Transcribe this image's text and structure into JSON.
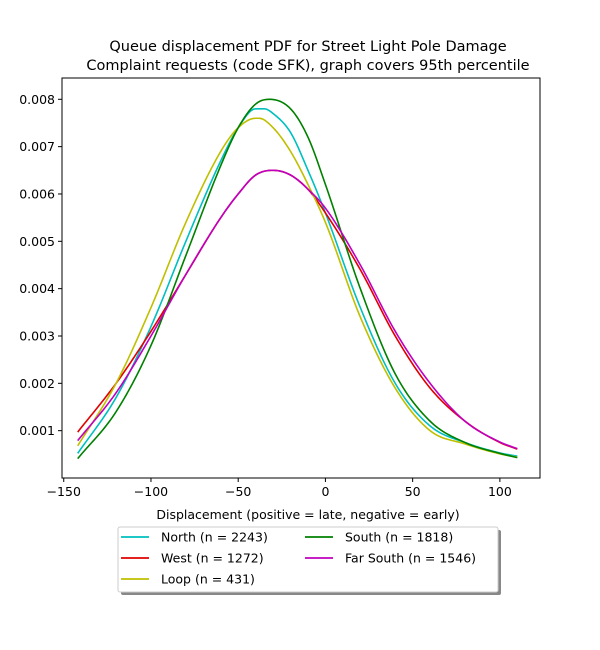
{
  "chart_data": {
    "type": "line",
    "title": "Queue displacement PDF for Street Light Pole Damage\nComplaint  requests (code SFK), graph covers 95th percentile",
    "xlabel": "Displacement (positive = late, negative = early)",
    "ylabel": "",
    "xlim": [
      -151,
      123
    ],
    "ylim": [
      0.0,
      0.00845
    ],
    "x_ticks": [
      -150,
      -100,
      -50,
      0,
      50,
      100
    ],
    "x_tick_labels": [
      "−150",
      "−100",
      "−50",
      "0",
      "50",
      "100"
    ],
    "y_ticks": [
      0.001,
      0.002,
      0.003,
      0.004,
      0.005,
      0.006,
      0.007,
      0.008
    ],
    "y_tick_labels": [
      "0.001",
      "0.002",
      "0.003",
      "0.004",
      "0.005",
      "0.006",
      "0.007",
      "0.008"
    ],
    "grid": false,
    "legend_placement": "below the plot, two columns",
    "series": [
      {
        "name": "North (n = 2243)",
        "color": "#00bfbf",
        "x": [
          -142,
          -120,
          -100,
          -80,
          -60,
          -50,
          -40,
          -35,
          -30,
          -20,
          -10,
          0,
          20,
          40,
          60,
          80,
          100,
          110
        ],
        "y": [
          0.00052,
          0.0017,
          0.0032,
          0.005,
          0.0067,
          0.0074,
          0.0078,
          0.0078,
          0.0077,
          0.0073,
          0.0065,
          0.0056,
          0.0036,
          0.002,
          0.0011,
          0.00075,
          0.00053,
          0.00046
        ]
      },
      {
        "name": "West (n = 1272)",
        "color": "#e00000",
        "x": [
          -142,
          -120,
          -100,
          -80,
          -60,
          -50,
          -40,
          -30,
          -20,
          -10,
          0,
          20,
          40,
          60,
          80,
          100,
          110
        ],
        "y": [
          0.00097,
          0.002,
          0.0031,
          0.0043,
          0.0055,
          0.006,
          0.0064,
          0.0065,
          0.0064,
          0.0061,
          0.0056,
          0.0044,
          0.003,
          0.0019,
          0.0012,
          0.00075,
          0.00061
        ]
      },
      {
        "name": "Loop (n = 431)",
        "color": "#bfbf00",
        "x": [
          -142,
          -120,
          -100,
          -80,
          -60,
          -50,
          -40,
          -38,
          -30,
          -20,
          -10,
          0,
          20,
          40,
          60,
          80,
          100,
          110
        ],
        "y": [
          0.00068,
          0.002,
          0.0036,
          0.0054,
          0.0069,
          0.0074,
          0.0076,
          0.0076,
          0.0074,
          0.0069,
          0.0062,
          0.0054,
          0.0034,
          0.0019,
          0.001,
          0.00072,
          0.00051,
          0.00044
        ]
      },
      {
        "name": "South (n = 1818)",
        "color": "#008000",
        "x": [
          -142,
          -120,
          -100,
          -80,
          -60,
          -50,
          -40,
          -32,
          -20,
          -10,
          0,
          20,
          40,
          60,
          80,
          100,
          110
        ],
        "y": [
          0.00041,
          0.0014,
          0.0028,
          0.0047,
          0.0066,
          0.0074,
          0.0079,
          0.008,
          0.0078,
          0.0072,
          0.0062,
          0.004,
          0.0022,
          0.0012,
          0.00075,
          0.00052,
          0.00043
        ]
      },
      {
        "name": "Far South (n = 1546)",
        "color": "#bf00bf",
        "x": [
          -142,
          -120,
          -100,
          -80,
          -60,
          -50,
          -40,
          -30,
          -20,
          -10,
          0,
          20,
          40,
          60,
          80,
          100,
          110
        ],
        "y": [
          0.00079,
          0.0018,
          0.003,
          0.0043,
          0.0055,
          0.006,
          0.0064,
          0.0065,
          0.0064,
          0.0061,
          0.0057,
          0.0045,
          0.0031,
          0.002,
          0.0012,
          0.00076,
          0.00062
        ]
      }
    ]
  }
}
